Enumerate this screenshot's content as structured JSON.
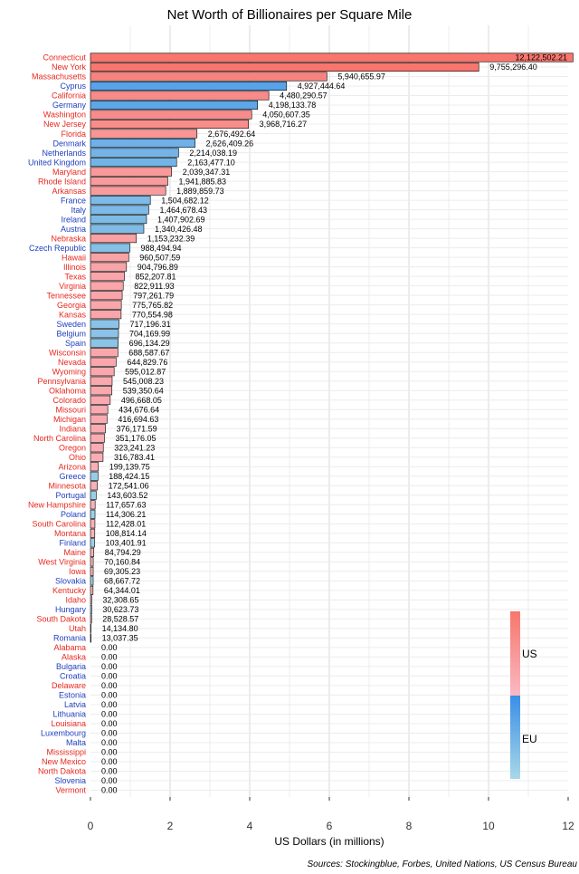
{
  "chart_data": {
    "type": "bar",
    "orientation": "horizontal",
    "title": "Net Worth of Billionaires per Square Mile",
    "xlabel": "US Dollars (in millions)",
    "source": "Sources: Stockingblue, Forbes, United Nations, US Census Bureau",
    "xlim": [
      0,
      12
    ],
    "xticks": [
      "0",
      "2",
      "4",
      "6",
      "8",
      "10",
      "12"
    ],
    "grid": true,
    "legend_position": "right",
    "legend": {
      "us_label": "US",
      "eu_label": "EU",
      "us_colors": [
        "#f8766d",
        "#f9b9c3"
      ],
      "eu_colors": [
        "#3b8ee6",
        "#a8d8e8"
      ]
    },
    "colors": {
      "US": "#f8766d",
      "EU": "#3b8ee6"
    },
    "items": [
      {
        "name": "Connecticut",
        "group": "US",
        "value": 12.12250221,
        "label": "12,122,502.21"
      },
      {
        "name": "New York",
        "group": "US",
        "value": 9.7552964,
        "label": "9,755,296.40"
      },
      {
        "name": "Massachusetts",
        "group": "US",
        "value": 5.94065597,
        "label": "5,940,655.97"
      },
      {
        "name": "Cyprus",
        "group": "EU",
        "value": 4.92744464,
        "label": "4,927,444.64"
      },
      {
        "name": "California",
        "group": "US",
        "value": 4.48029057,
        "label": "4,480,290.57"
      },
      {
        "name": "Germany",
        "group": "EU",
        "value": 4.19813378,
        "label": "4,198,133.78"
      },
      {
        "name": "Washington",
        "group": "US",
        "value": 4.05060735,
        "label": "4,050,607.35"
      },
      {
        "name": "New Jersey",
        "group": "US",
        "value": 3.96871627,
        "label": "3,968,716.27"
      },
      {
        "name": "Florida",
        "group": "US",
        "value": 2.67649264,
        "label": "2,676,492.64"
      },
      {
        "name": "Denmark",
        "group": "EU",
        "value": 2.62640926,
        "label": "2,626,409.26"
      },
      {
        "name": "Netherlands",
        "group": "EU",
        "value": 2.21403819,
        "label": "2,214,038.19"
      },
      {
        "name": "United Kingdom",
        "group": "EU",
        "value": 2.1634771,
        "label": "2,163,477.10"
      },
      {
        "name": "Maryland",
        "group": "US",
        "value": 2.03934731,
        "label": "2,039,347.31"
      },
      {
        "name": "Rhode Island",
        "group": "US",
        "value": 1.94188583,
        "label": "1,941,885.83"
      },
      {
        "name": "Arkansas",
        "group": "US",
        "value": 1.88985973,
        "label": "1,889,859.73"
      },
      {
        "name": "France",
        "group": "EU",
        "value": 1.50468212,
        "label": "1,504,682.12"
      },
      {
        "name": "Italy",
        "group": "EU",
        "value": 1.46467843,
        "label": "1,464,678.43"
      },
      {
        "name": "Ireland",
        "group": "EU",
        "value": 1.40790269,
        "label": "1,407,902.69"
      },
      {
        "name": "Austria",
        "group": "EU",
        "value": 1.34042648,
        "label": "1,340,426.48"
      },
      {
        "name": "Nebraska",
        "group": "US",
        "value": 1.15323239,
        "label": "1,153,232.39"
      },
      {
        "name": "Czech Republic",
        "group": "EU",
        "value": 0.98849494,
        "label": "988,494.94"
      },
      {
        "name": "Hawaii",
        "group": "US",
        "value": 0.96050759,
        "label": "960,507.59"
      },
      {
        "name": "Illinois",
        "group": "US",
        "value": 0.90479689,
        "label": "904,796.89"
      },
      {
        "name": "Texas",
        "group": "US",
        "value": 0.85220781,
        "label": "852,207.81"
      },
      {
        "name": "Virginia",
        "group": "US",
        "value": 0.82291193,
        "label": "822,911.93"
      },
      {
        "name": "Tennessee",
        "group": "US",
        "value": 0.79726179,
        "label": "797,261.79"
      },
      {
        "name": "Georgia",
        "group": "US",
        "value": 0.77576582,
        "label": "775,765.82"
      },
      {
        "name": "Kansas",
        "group": "US",
        "value": 0.77055498,
        "label": "770,554.98"
      },
      {
        "name": "Sweden",
        "group": "EU",
        "value": 0.71719631,
        "label": "717,196.31"
      },
      {
        "name": "Belgium",
        "group": "EU",
        "value": 0.70416999,
        "label": "704,169.99"
      },
      {
        "name": "Spain",
        "group": "EU",
        "value": 0.69613429,
        "label": "696,134.29"
      },
      {
        "name": "Wisconsin",
        "group": "US",
        "value": 0.68858767,
        "label": "688,587.67"
      },
      {
        "name": "Nevada",
        "group": "US",
        "value": 0.64482976,
        "label": "644,829.76"
      },
      {
        "name": "Wyoming",
        "group": "US",
        "value": 0.59501287,
        "label": "595,012.87"
      },
      {
        "name": "Pennsylvania",
        "group": "US",
        "value": 0.54500823,
        "label": "545,008.23"
      },
      {
        "name": "Oklahoma",
        "group": "US",
        "value": 0.53935064,
        "label": "539,350.64"
      },
      {
        "name": "Colorado",
        "group": "US",
        "value": 0.49666805,
        "label": "496,668.05"
      },
      {
        "name": "Missouri",
        "group": "US",
        "value": 0.43467664,
        "label": "434,676.64"
      },
      {
        "name": "Michigan",
        "group": "US",
        "value": 0.41669463,
        "label": "416,694.63"
      },
      {
        "name": "Indiana",
        "group": "US",
        "value": 0.37617159,
        "label": "376,171.59"
      },
      {
        "name": "North Carolina",
        "group": "US",
        "value": 0.35117605,
        "label": "351,176.05"
      },
      {
        "name": "Oregon",
        "group": "US",
        "value": 0.32324123,
        "label": "323,241.23"
      },
      {
        "name": "Ohio",
        "group": "US",
        "value": 0.31678341,
        "label": "316,783.41"
      },
      {
        "name": "Arizona",
        "group": "US",
        "value": 0.19913975,
        "label": "199,139.75"
      },
      {
        "name": "Greece",
        "group": "EU",
        "value": 0.18842415,
        "label": "188,424.15"
      },
      {
        "name": "Minnesota",
        "group": "US",
        "value": 0.17254106,
        "label": "172,541.06"
      },
      {
        "name": "Portugal",
        "group": "EU",
        "value": 0.14360352,
        "label": "143,603.52"
      },
      {
        "name": "New Hampshire",
        "group": "US",
        "value": 0.11765763,
        "label": "117,657.63"
      },
      {
        "name": "Poland",
        "group": "EU",
        "value": 0.11430621,
        "label": "114,306.21"
      },
      {
        "name": "South Carolina",
        "group": "US",
        "value": 0.11242801,
        "label": "112,428.01"
      },
      {
        "name": "Montana",
        "group": "US",
        "value": 0.10881414,
        "label": "108,814.14"
      },
      {
        "name": "Finland",
        "group": "EU",
        "value": 0.10340191,
        "label": "103,401.91"
      },
      {
        "name": "Maine",
        "group": "US",
        "value": 0.08479429,
        "label": "84,794.29"
      },
      {
        "name": "West Virginia",
        "group": "US",
        "value": 0.07016084,
        "label": "70,160.84"
      },
      {
        "name": "Iowa",
        "group": "US",
        "value": 0.06930523,
        "label": "69,305.23"
      },
      {
        "name": "Slovakia",
        "group": "EU",
        "value": 0.06866772,
        "label": "68,667.72"
      },
      {
        "name": "Kentucky",
        "group": "US",
        "value": 0.06434401,
        "label": "64,344.01"
      },
      {
        "name": "Idaho",
        "group": "US",
        "value": 0.03230865,
        "label": "32,308.65"
      },
      {
        "name": "Hungary",
        "group": "EU",
        "value": 0.03062373,
        "label": "30,623.73"
      },
      {
        "name": "South Dakota",
        "group": "US",
        "value": 0.02852857,
        "label": "28,528.57"
      },
      {
        "name": "Utah",
        "group": "US",
        "value": 0.0141348,
        "label": "14,134.80"
      },
      {
        "name": "Romania",
        "group": "EU",
        "value": 0.01303735,
        "label": "13,037.35"
      },
      {
        "name": "Alabama",
        "group": "US",
        "value": 0,
        "label": "0.00"
      },
      {
        "name": "Alaska",
        "group": "US",
        "value": 0,
        "label": "0.00"
      },
      {
        "name": "Bulgaria",
        "group": "EU",
        "value": 0,
        "label": "0.00"
      },
      {
        "name": "Croatia",
        "group": "EU",
        "value": 0,
        "label": "0.00"
      },
      {
        "name": "Delaware",
        "group": "US",
        "value": 0,
        "label": "0.00"
      },
      {
        "name": "Estonia",
        "group": "EU",
        "value": 0,
        "label": "0.00"
      },
      {
        "name": "Latvia",
        "group": "EU",
        "value": 0,
        "label": "0.00"
      },
      {
        "name": "Lithuania",
        "group": "EU",
        "value": 0,
        "label": "0.00"
      },
      {
        "name": "Louisiana",
        "group": "US",
        "value": 0,
        "label": "0.00"
      },
      {
        "name": "Luxembourg",
        "group": "EU",
        "value": 0,
        "label": "0.00"
      },
      {
        "name": "Malta",
        "group": "EU",
        "value": 0,
        "label": "0.00"
      },
      {
        "name": "Mississippi",
        "group": "US",
        "value": 0,
        "label": "0.00"
      },
      {
        "name": "New Mexico",
        "group": "US",
        "value": 0,
        "label": "0.00"
      },
      {
        "name": "North Dakota",
        "group": "US",
        "value": 0,
        "label": "0.00"
      },
      {
        "name": "Slovenia",
        "group": "EU",
        "value": 0,
        "label": "0.00"
      },
      {
        "name": "Vermont",
        "group": "US",
        "value": 0,
        "label": "0.00"
      }
    ]
  }
}
